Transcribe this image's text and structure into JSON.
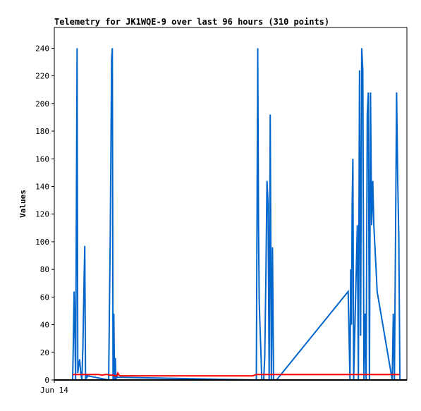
{
  "chart_data": {
    "type": "line",
    "title": "Telemetry for JK1WQE-9 over last 96 hours (310 points)",
    "xlabel": "",
    "ylabel": "Values",
    "x_tick_labels": [
      "Jun 14"
    ],
    "ylim": [
      0,
      255
    ],
    "y_ticks": [
      0,
      20,
      40,
      60,
      80,
      100,
      120,
      140,
      160,
      180,
      200,
      220,
      240
    ],
    "xlim": [
      0,
      96
    ],
    "grid": false,
    "legend": "none",
    "series": [
      {
        "color": "#0066cc",
        "x": [
          5.0,
          5.2,
          5.4,
          5.6,
          5.8,
          6.0,
          6.2,
          6.4,
          6.6,
          6.9,
          7.2,
          7.5,
          7.8,
          8.1,
          8.3,
          8.5,
          8.7,
          8.9,
          9.1,
          14.8,
          15.0,
          15.2,
          15.4,
          15.6,
          15.8,
          16.0,
          16.2,
          16.4,
          16.6,
          16.8,
          17.0,
          17.2,
          55.0,
          55.2,
          55.4,
          55.6,
          55.8,
          56.5,
          57.0,
          57.3,
          57.6,
          57.9,
          58.2,
          58.5,
          58.8,
          59.1,
          59.4,
          59.7,
          60.5,
          80.0,
          80.5,
          80.7,
          80.9,
          81.1,
          81.3,
          81.5,
          82.5,
          82.8,
          83.1,
          83.4,
          83.7,
          84.0,
          84.3,
          84.6,
          84.9,
          85.2,
          85.5,
          85.8,
          86.1,
          86.4,
          86.7,
          87.0,
          87.3,
          87.6,
          87.9,
          92.0,
          92.3,
          92.6,
          92.9,
          93.2,
          93.5,
          93.8,
          94.1
        ],
        "y": [
          0,
          30,
          64,
          35,
          0,
          120,
          240,
          5,
          10,
          15,
          5,
          0,
          25,
          72,
          97,
          0,
          4,
          2,
          3,
          0,
          48,
          97,
          160,
          232,
          240,
          0,
          48,
          0,
          16,
          0,
          4,
          2,
          0,
          120,
          240,
          112,
          56,
          0,
          0,
          16,
          72,
          144,
          128,
          0,
          192,
          0,
          96,
          0,
          0,
          64,
          0,
          80,
          40,
          128,
          160,
          0,
          112,
          0,
          224,
          32,
          240,
          224,
          0,
          48,
          0,
          192,
          208,
          0,
          208,
          112,
          144,
          112,
          96,
          80,
          64,
          0,
          48,
          0,
          104,
          208,
          144,
          104,
          0
        ]
      },
      {
        "color": "#ff0000",
        "x": [
          5,
          7,
          9,
          10,
          11,
          12,
          13,
          14,
          14.5,
          15,
          16,
          16.5,
          17,
          17.3,
          17.6,
          18,
          20,
          30,
          40,
          50,
          54,
          55,
          56,
          60,
          70,
          80,
          85,
          90,
          94
        ],
        "y": [
          4,
          4,
          4,
          4,
          4,
          4,
          3.5,
          4,
          4,
          3.5,
          3.5,
          3,
          3,
          5,
          3.5,
          3,
          3,
          3,
          3,
          3,
          3,
          4,
          4,
          4,
          4,
          4,
          4,
          4,
          4
        ]
      },
      {
        "color": "#000000",
        "x": [
          0,
          96
        ],
        "y": [
          0,
          0
        ]
      }
    ]
  }
}
